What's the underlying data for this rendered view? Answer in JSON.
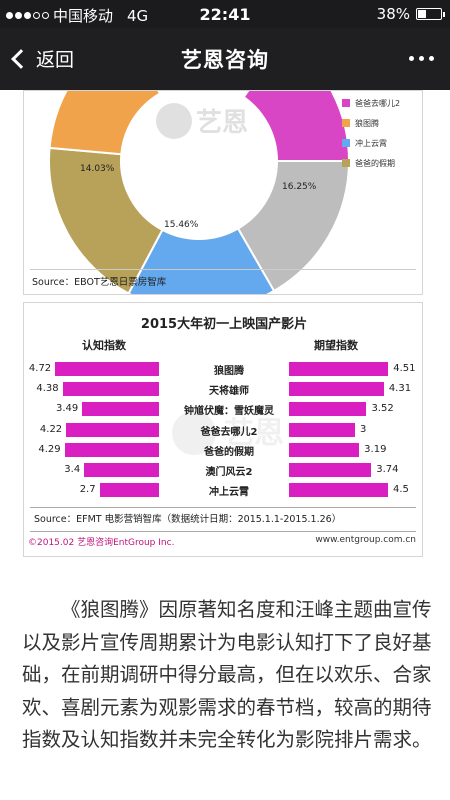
{
  "status_bar": {
    "signal_filled": 3,
    "signal_total": 5,
    "carrier": "中国移动",
    "network": "4G",
    "time": "22:41",
    "battery": "38%",
    "battery_level": 0.38
  },
  "nav": {
    "back_label": "返回",
    "title": "艺恩咨询"
  },
  "figure1": {
    "chart_data": {
      "type": "pie",
      "slices": [
        {
          "label": "",
          "value": 16.25,
          "value_label": "16.25%",
          "color": "#bdbdbd"
        },
        {
          "label": "",
          "value": 15.46,
          "value_label": "15.46%",
          "color": "#64a8ee"
        },
        {
          "label": "",
          "value": 14.03,
          "value_label": "14.03%",
          "color": "#b8a25a"
        }
      ],
      "legend": [
        {
          "label": "爸爸去哪儿2",
          "color": "#d946c5"
        },
        {
          "label": "狼图腾",
          "color": "#f0a34b"
        },
        {
          "label": "冲上云霄",
          "color": "#64a8ee"
        },
        {
          "label": "爸爸的假期",
          "color": "#b8a25a"
        }
      ]
    },
    "watermark": "艺恩",
    "source": "Source：EBOT艺恩日票房智库"
  },
  "figure2": {
    "chart_data": {
      "type": "bar",
      "title": "2015大年初一上映国产影片",
      "left_axis_label": "认知指数",
      "right_axis_label": "期望指数",
      "categories": [
        "狼图腾",
        "天将雄师",
        "钟馗伏魔：雪妖魔灵",
        "爸爸去哪儿2",
        "爸爸的假期",
        "澳门风云2",
        "冲上云霄"
      ],
      "series": [
        {
          "name": "认知指数",
          "values": [
            4.72,
            4.38,
            3.49,
            4.22,
            4.29,
            3.4,
            2.7
          ],
          "labels": [
            "4.72",
            "4.38",
            "3.49",
            "4.22",
            "4.29",
            "3.4",
            "2.7"
          ]
        },
        {
          "name": "期望指数",
          "values": [
            4.51,
            4.31,
            3.52,
            3,
            3.19,
            3.74,
            4.5
          ],
          "labels": [
            "4.51",
            "4.31",
            "3.52",
            "3",
            "3.19",
            "3.74",
            "4.5"
          ]
        }
      ],
      "bar_color": "#d91fc2"
    },
    "watermark": "艺恩",
    "source": "Source：EFMT 电影营销智库（数据统计日期：2015.1.1-2015.1.26）",
    "copyright": "©2015.02 艺恩咨询EntGroup Inc.",
    "website": "www.entgroup.com.cn"
  },
  "article": {
    "text": "《狼图腾》因原著知名度和汪峰主题曲宣传以及影片宣传周期累计为电影认知打下了良好基础，在前期调研中得分最高，但在以欢乐、合家欢、喜剧元素为观影需求的春节档，较高的期待指数及认知指数并未完全转化为影院排片需求。"
  }
}
